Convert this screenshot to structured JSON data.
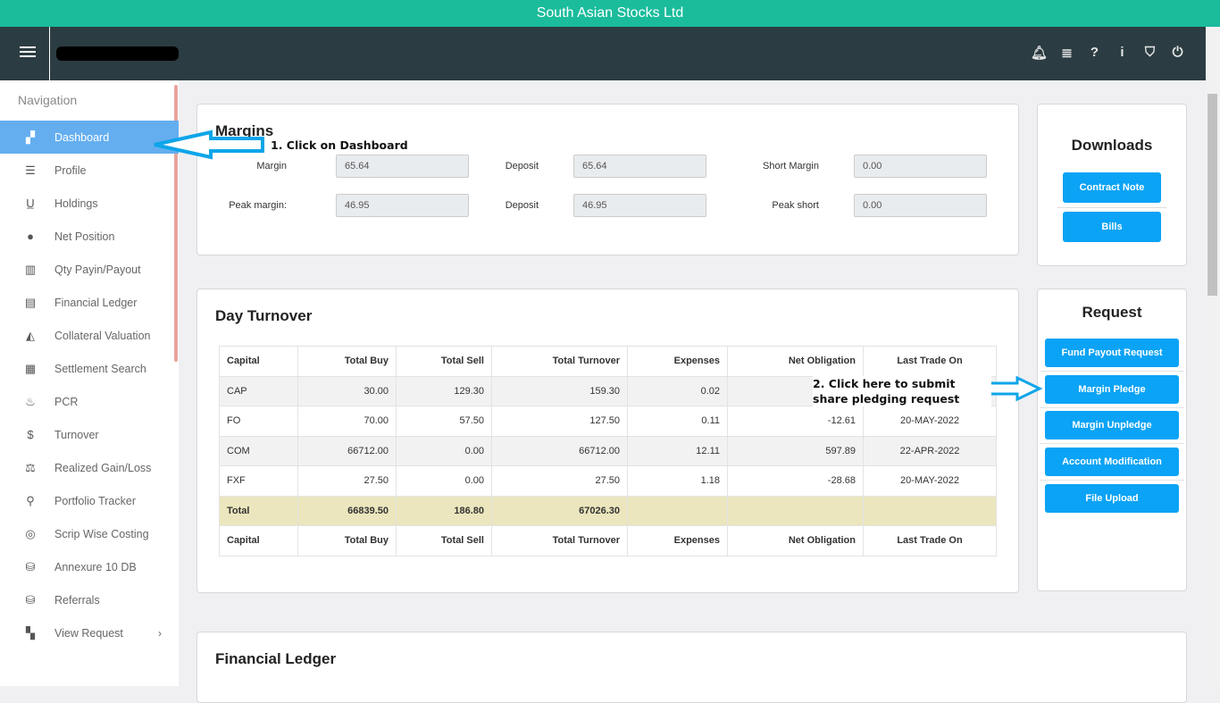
{
  "app_title": "South Asian Stocks Ltd",
  "header": {
    "icons": [
      "bell-icon",
      "list-icon",
      "help-icon",
      "info-icon",
      "shield-icon",
      "power-icon"
    ]
  },
  "sidebar": {
    "title": "Navigation",
    "items": [
      {
        "label": "Dashboard",
        "icon": "▞",
        "active": true
      },
      {
        "label": "Profile",
        "icon": "☰"
      },
      {
        "label": "Holdings",
        "icon": "U̲"
      },
      {
        "label": "Net Position",
        "icon": "●"
      },
      {
        "label": "Qty Payin/Payout",
        "icon": "▥"
      },
      {
        "label": "Financial Ledger",
        "icon": "▤"
      },
      {
        "label": "Collateral Valuation",
        "icon": "◭"
      },
      {
        "label": "Settlement Search",
        "icon": "▦"
      },
      {
        "label": "PCR",
        "icon": "♨"
      },
      {
        "label": "Turnover",
        "icon": "$"
      },
      {
        "label": "Realized Gain/Loss",
        "icon": "⚖"
      },
      {
        "label": "Portfolio Tracker",
        "icon": "⚲"
      },
      {
        "label": "Scrip Wise Costing",
        "icon": "◎"
      },
      {
        "label": "Annexure 10 DB",
        "icon": "⛁"
      },
      {
        "label": "Referrals",
        "icon": "⛁"
      },
      {
        "label": "View Request",
        "icon": "▚"
      }
    ]
  },
  "margins": {
    "title": "Margins",
    "fields": [
      {
        "label": "Margin",
        "value": "65.64"
      },
      {
        "label": "Deposit",
        "value": "65.64"
      },
      {
        "label": "Short Margin",
        "value": "0.00"
      },
      {
        "label": "Peak margin:",
        "value": "46.95"
      },
      {
        "label": "Deposit",
        "value": "46.95"
      },
      {
        "label": "Peak short",
        "value": "0.00"
      }
    ]
  },
  "downloads": {
    "title": "Downloads",
    "buttons": [
      "Contract Note",
      "Bills"
    ]
  },
  "turnover": {
    "title": "Day Turnover",
    "headers": [
      "Capital",
      "Total Buy",
      "Total Sell",
      "Total Turnover",
      "Expenses",
      "Net Obligation",
      "Last Trade On"
    ],
    "rows": [
      [
        "CAP",
        "30.00",
        "129.30",
        "159.30",
        "0.02",
        "",
        ""
      ],
      [
        "FO",
        "70.00",
        "57.50",
        "127.50",
        "0.11",
        "-12.61",
        "20-MAY-2022"
      ],
      [
        "COM",
        "66712.00",
        "0.00",
        "66712.00",
        "12.11",
        "597.89",
        "22-APR-2022"
      ],
      [
        "FXF",
        "27.50",
        "0.00",
        "27.50",
        "1.18",
        "-28.68",
        "20-MAY-2022"
      ]
    ],
    "total": [
      "Total",
      "66839.50",
      "186.80",
      "67026.30",
      "",
      "",
      ""
    ]
  },
  "request": {
    "title": "Request",
    "buttons": [
      "Fund Payout Request",
      "Margin Pledge",
      "Margin Unpledge",
      "Account Modification",
      "File Upload"
    ]
  },
  "ledger": {
    "title": "Financial Ledger"
  },
  "annotations": {
    "step1": "1. Click on Dashboard",
    "step2": "2. Click here to submit share pledging request"
  },
  "colors": {
    "topbar": "#1abc9c",
    "header": "#2b3d42",
    "active_nav": "#64aef0",
    "button": "#0ba3f5",
    "total_row": "#ebe6bd",
    "arrow": "#0ea5e9"
  }
}
